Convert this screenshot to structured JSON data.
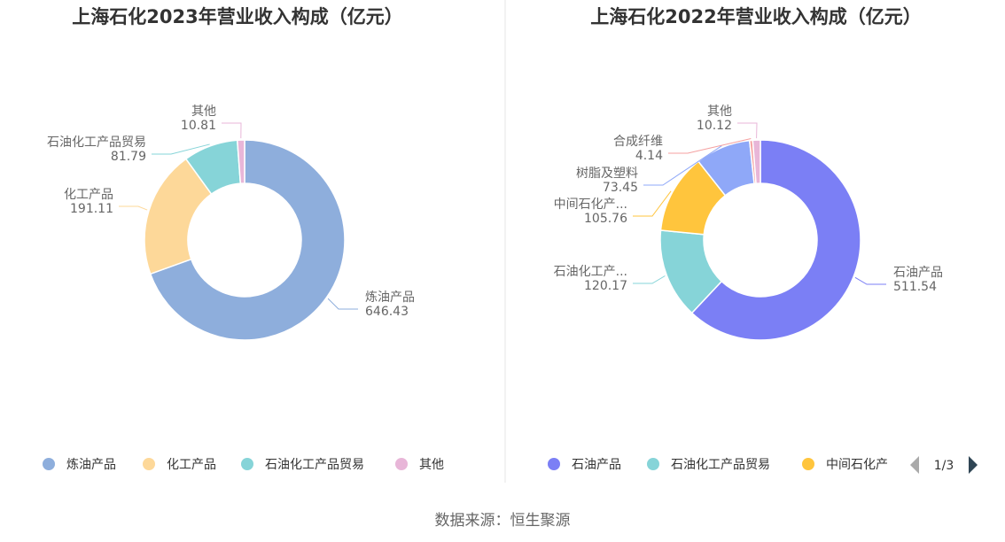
{
  "footer": "数据来源：恒生聚源",
  "chart_data": [
    {
      "type": "pie",
      "title": "上海石化2023年营业收入构成（亿元）",
      "donut": true,
      "slices": [
        {
          "name": "炼油产品",
          "value": 646.43,
          "color": "#8eaedc",
          "label_name": "炼油产品",
          "label_value": "646.43"
        },
        {
          "name": "化工产品",
          "value": 191.11,
          "color": "#fdd899",
          "label_name": "化工产品",
          "label_value": "191.11"
        },
        {
          "name": "石油化工产品贸易",
          "value": 81.79,
          "color": "#86d4d8",
          "label_name": "石油化工产品贸易",
          "label_value": "81.79"
        },
        {
          "name": "其他",
          "value": 10.81,
          "color": "#e8b6d8",
          "label_name": "其他",
          "label_value": "10.81"
        }
      ],
      "legend": [
        "炼油产品",
        "化工产品",
        "石油化工产品贸易",
        "其他"
      ],
      "legend_placement": "bottom"
    },
    {
      "type": "pie",
      "title": "上海石化2022年营业收入构成（亿元）",
      "donut": true,
      "slices": [
        {
          "name": "石油产品",
          "value": 511.54,
          "color": "#7b7ff5",
          "label_name": "石油产品",
          "label_value": "511.54"
        },
        {
          "name": "石油化工产品贸易",
          "value": 120.17,
          "color": "#86d4d8",
          "label_name": "石油化工产...",
          "label_value": "120.17"
        },
        {
          "name": "中间石化产品",
          "value": 105.76,
          "color": "#ffc53d",
          "label_name": "中间石化产...",
          "label_value": "105.76"
        },
        {
          "name": "树脂及塑料",
          "value": 73.45,
          "color": "#8fa8f8",
          "label_name": "树脂及塑料",
          "label_value": "73.45"
        },
        {
          "name": "合成纤维",
          "value": 4.14,
          "color": "#f4a0a0",
          "label_name": "合成纤维",
          "label_value": "4.14"
        },
        {
          "name": "其他",
          "value": 10.12,
          "color": "#e8b6d8",
          "label_name": "其他",
          "label_value": "10.12"
        }
      ],
      "legend": [
        "石油产品",
        "石油化工产品贸易",
        "中间石化产"
      ],
      "legend_placement": "bottom",
      "legend_page": "1/3"
    }
  ]
}
